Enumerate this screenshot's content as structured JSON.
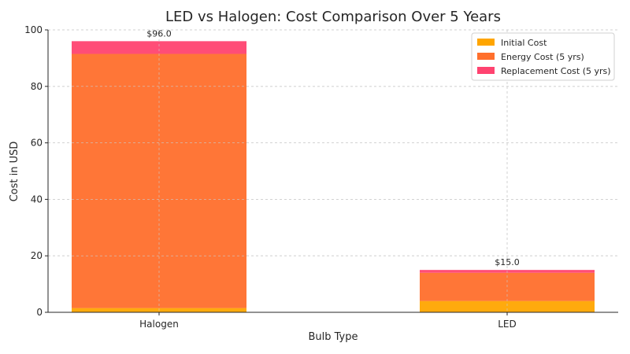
{
  "chart_data": {
    "type": "bar",
    "stacked": true,
    "title": "LED vs Halogen: Cost Comparison Over 5 Years",
    "xlabel": "Bulb Type",
    "ylabel": "Cost in USD",
    "categories": [
      "Halogen",
      "LED"
    ],
    "series": [
      {
        "name": "Initial Cost",
        "values": [
          1.5,
          4.0
        ],
        "color": "#FFA500"
      },
      {
        "name": "Energy Cost (5 yrs)",
        "values": [
          90.0,
          10.0
        ],
        "color": "#FF6F2C"
      },
      {
        "name": "Replacement Cost (5 yrs)",
        "values": [
          4.5,
          1.0
        ],
        "color": "#FF4370"
      }
    ],
    "totals": [
      "$96.0",
      "$15.0"
    ],
    "ylim": [
      0,
      100
    ],
    "yticks": [
      0,
      20,
      40,
      60,
      80,
      100
    ],
    "grid": true,
    "legend_position": "top-right"
  }
}
